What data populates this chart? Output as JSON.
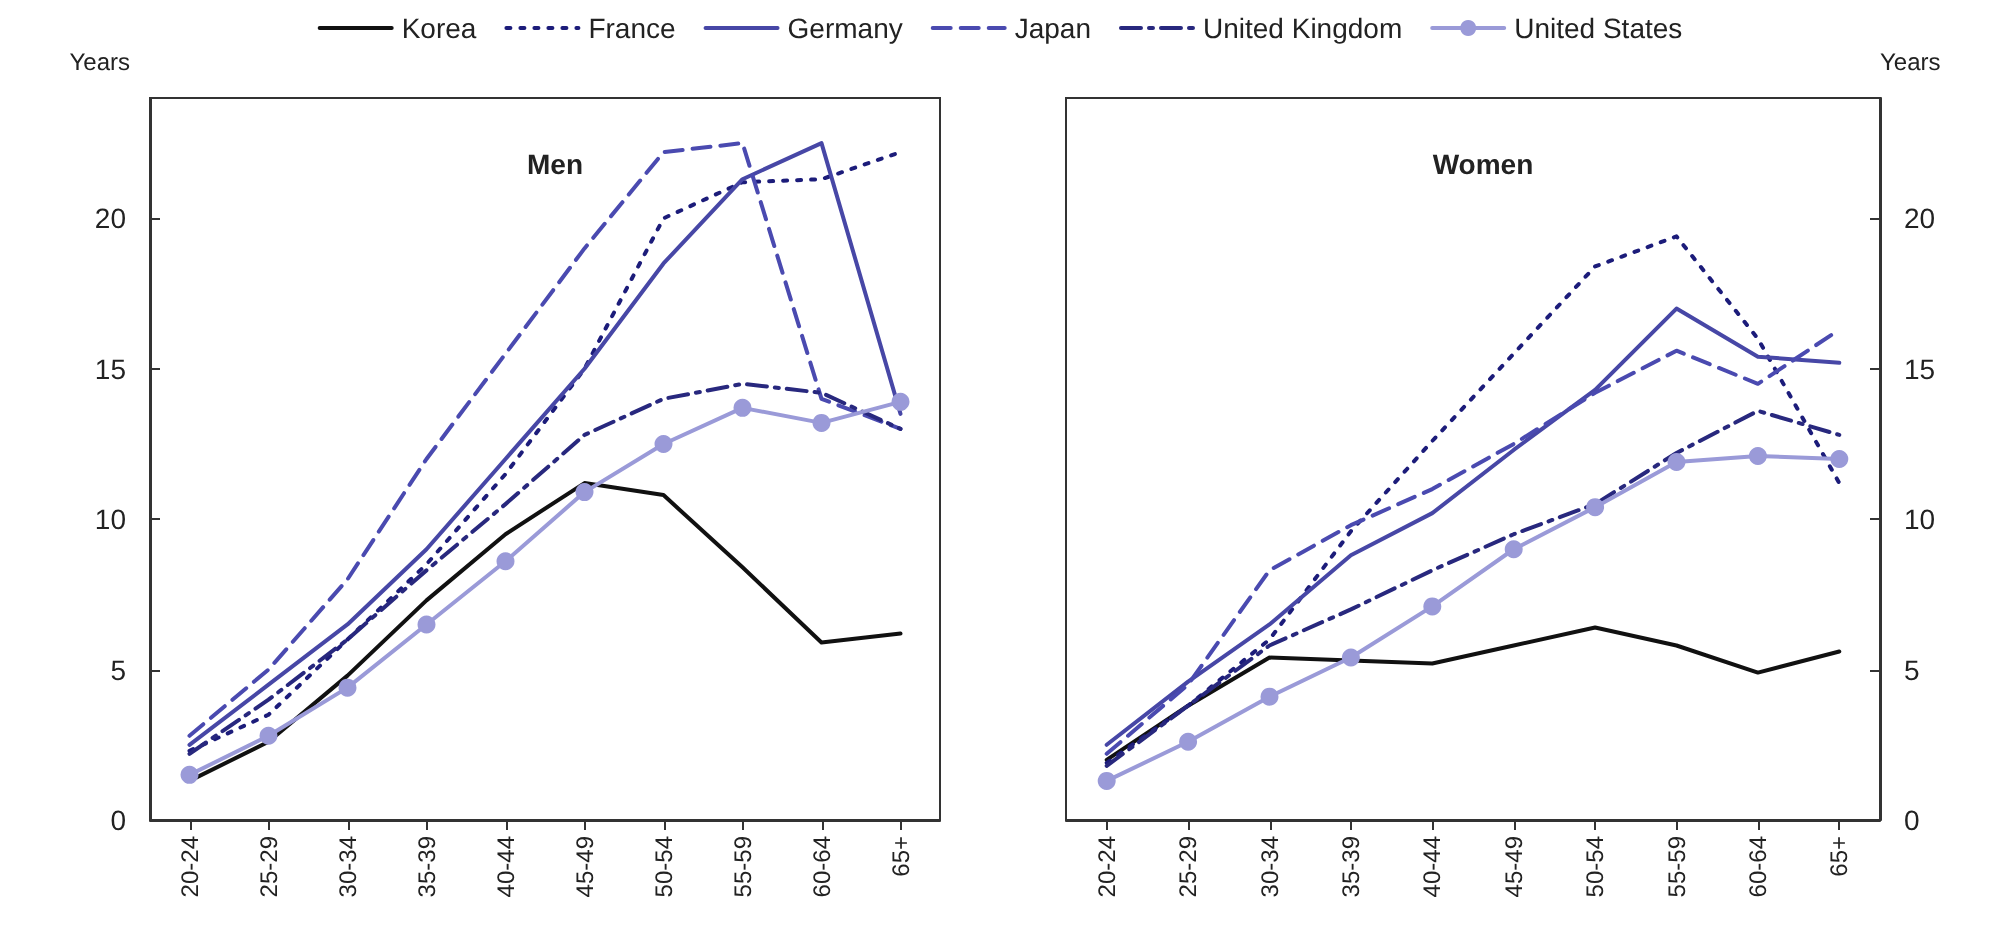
{
  "chart_data": [
    {
      "type": "line",
      "title": "Men",
      "ylabel": "Years",
      "legend": "top",
      "categories": [
        "20-24",
        "25-29",
        "30-34",
        "35-39",
        "40-44",
        "45-49",
        "50-54",
        "55-59",
        "60-64",
        "65+"
      ],
      "ylim": [
        0,
        24
      ],
      "yticks": [
        0,
        5,
        10,
        15,
        20
      ],
      "series": [
        {
          "name": "Korea",
          "color": "#111111",
          "line_style": "solid",
          "values": [
            1.3,
            2.6,
            4.8,
            7.3,
            9.5,
            11.2,
            10.8,
            8.4,
            5.9,
            6.2
          ]
        },
        {
          "name": "France",
          "color": "#1c1c7a",
          "line_style": "dotted",
          "values": [
            2.3,
            3.5,
            6.0,
            8.5,
            11.5,
            15.0,
            20.0,
            21.2,
            21.3,
            22.2
          ]
        },
        {
          "name": "Germany",
          "color": "#4747a6",
          "line_style": "solid",
          "values": [
            2.5,
            4.5,
            6.5,
            9.0,
            12.0,
            15.0,
            18.5,
            21.3,
            22.5,
            13.5
          ]
        },
        {
          "name": "Japan",
          "color": "#4a4ab0",
          "line_style": "dashed",
          "values": [
            2.8,
            5.0,
            8.0,
            12.0,
            15.5,
            19.0,
            22.2,
            22.5,
            14.0,
            13.0
          ]
        },
        {
          "name": "United Kingdom",
          "color": "#28287e",
          "line_style": "dashdot",
          "values": [
            2.2,
            4.0,
            6.0,
            8.3,
            10.5,
            12.8,
            14.0,
            14.5,
            14.2,
            13.0
          ]
        },
        {
          "name": "United States",
          "color": "#9a9ad8",
          "line_style": "solid",
          "marker": "circle",
          "values": [
            1.5,
            2.8,
            4.4,
            6.5,
            8.6,
            10.9,
            12.5,
            13.7,
            13.2,
            13.9
          ]
        }
      ]
    },
    {
      "type": "line",
      "title": "Women",
      "ylabel": "Years",
      "categories": [
        "20-24",
        "25-29",
        "30-34",
        "35-39",
        "40-44",
        "45-49",
        "50-54",
        "55-59",
        "60-64",
        "65+"
      ],
      "ylim": [
        0,
        24
      ],
      "yticks": [
        0,
        5,
        10,
        15,
        20
      ],
      "series": [
        {
          "color": "#111111",
          "line_style": "solid",
          "values": [
            2.0,
            3.8,
            5.4,
            5.3,
            5.2,
            5.8,
            6.4,
            5.8,
            4.9,
            5.6
          ]
        },
        {
          "color": "#1c1c7a",
          "line_style": "dotted",
          "values": [
            1.9,
            3.8,
            6.0,
            9.6,
            12.6,
            15.5,
            18.4,
            19.4,
            16.0,
            11.2
          ]
        },
        {
          "color": "#4747a6",
          "line_style": "solid",
          "values": [
            2.5,
            4.6,
            6.5,
            8.8,
            10.2,
            12.3,
            14.3,
            17.0,
            15.4,
            15.2
          ]
        },
        {
          "color": "#4a4ab0",
          "line_style": "dashed",
          "values": [
            2.2,
            4.5,
            8.3,
            9.8,
            11.0,
            12.5,
            14.2,
            15.6,
            14.5,
            16.3
          ]
        },
        {
          "color": "#28287e",
          "line_style": "dashdot",
          "values": [
            1.8,
            3.8,
            5.8,
            7.0,
            8.3,
            9.5,
            10.5,
            12.2,
            13.6,
            12.8
          ]
        },
        {
          "color": "#9a9ad8",
          "line_style": "solid",
          "marker": "circle",
          "values": [
            1.3,
            2.6,
            4.1,
            5.4,
            7.1,
            9.0,
            10.4,
            11.9,
            12.1,
            12.0
          ]
        }
      ]
    }
  ]
}
